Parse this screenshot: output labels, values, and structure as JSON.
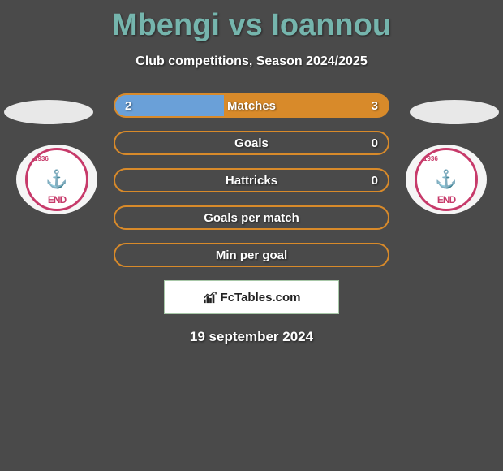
{
  "title": "Mbengi vs Ioannou",
  "subtitle": "Club competitions, Season 2024/2025",
  "date": "19 september 2024",
  "footer_brand": "FcTables.com",
  "colors": {
    "background": "#4a4a4a",
    "title": "#75b5ad",
    "text": "#ffffff",
    "badge_border": "#c73a6a",
    "footer_bg": "#ffffff",
    "footer_border": "#a8c8a8"
  },
  "badges": {
    "left": {
      "year": "1936",
      "text": "END"
    },
    "right": {
      "year": "1936",
      "text": "END"
    }
  },
  "stats": [
    {
      "label": "Matches",
      "left_value": "2",
      "right_value": "3",
      "left_width_pct": 40,
      "fill_color": "#6aa0d8",
      "border_color": "#d88a2a",
      "bg_color": "#d88a2a"
    },
    {
      "label": "Goals",
      "left_value": "",
      "right_value": "0",
      "left_width_pct": 0,
      "fill_color": "#6aa0d8",
      "border_color": "#d88a2a",
      "bg_color": "transparent"
    },
    {
      "label": "Hattricks",
      "left_value": "",
      "right_value": "0",
      "left_width_pct": 0,
      "fill_color": "#6aa0d8",
      "border_color": "#d88a2a",
      "bg_color": "transparent"
    },
    {
      "label": "Goals per match",
      "left_value": "",
      "right_value": "",
      "left_width_pct": 0,
      "fill_color": "#6aa0d8",
      "border_color": "#d88a2a",
      "bg_color": "transparent"
    },
    {
      "label": "Min per goal",
      "left_value": "",
      "right_value": "",
      "left_width_pct": 0,
      "fill_color": "#6aa0d8",
      "border_color": "#d88a2a",
      "bg_color": "transparent"
    }
  ]
}
